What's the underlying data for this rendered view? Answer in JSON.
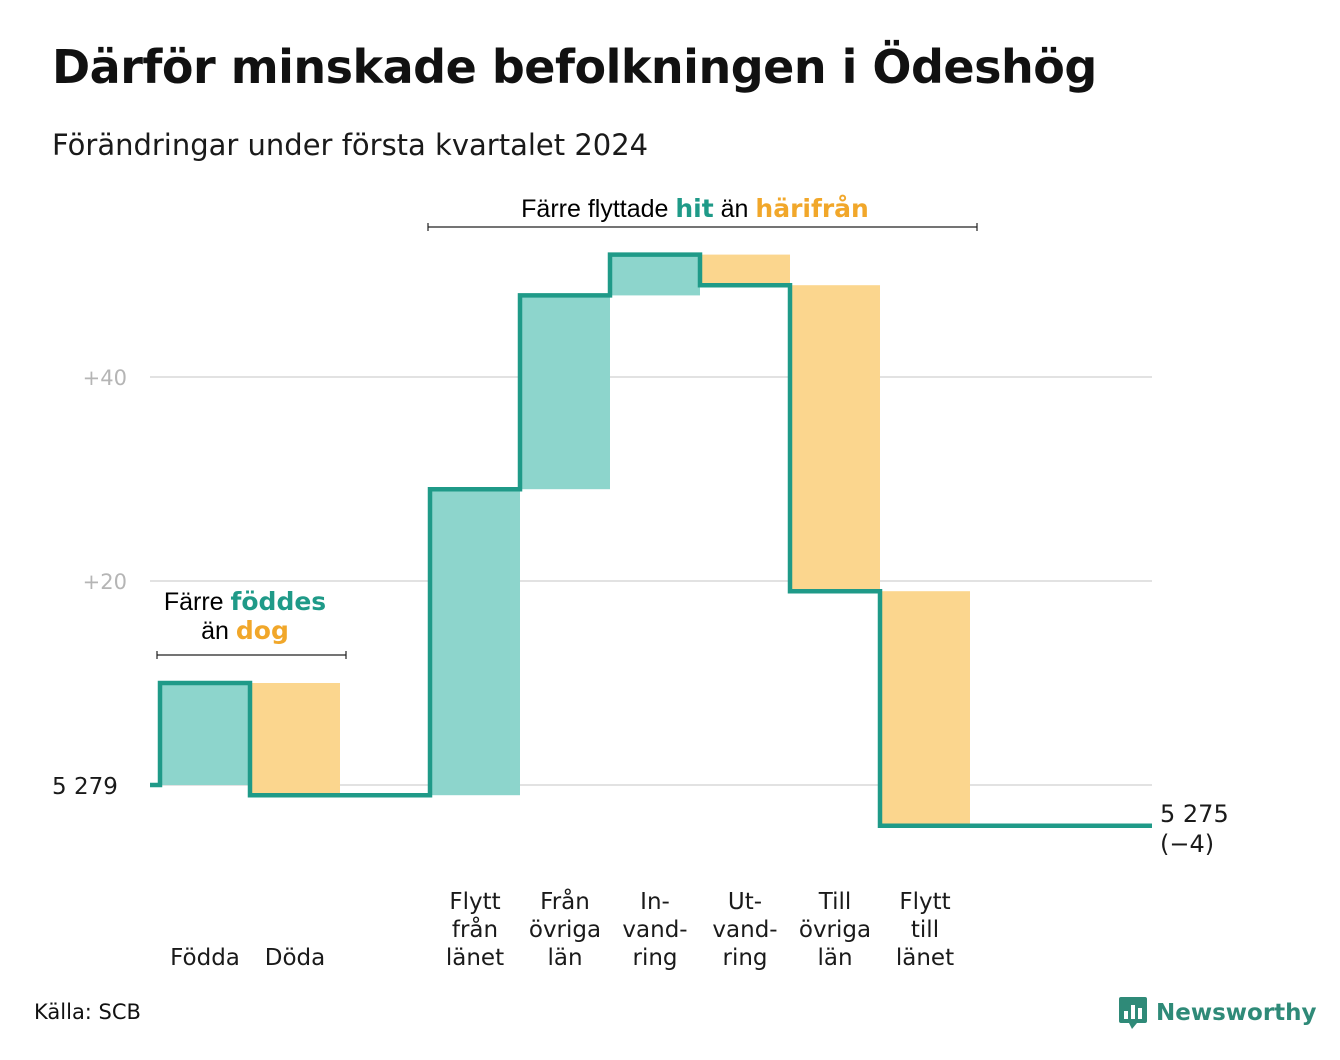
{
  "header": {
    "title": "Därför minskade befolkningen i Ödeshög",
    "subtitle": "Förändringar under första kvartalet 2024"
  },
  "footer": {
    "source": "Källa: SCB",
    "brand": "Newsworthy",
    "brand_icon": "bar-chart-speech-bubble-icon"
  },
  "colors": {
    "increase": "#8dd5cc",
    "decrease": "#fbd68e",
    "line": "#1f9a88",
    "grid": "#e2e2e2",
    "accent_teal": "#1f9a88",
    "accent_orange": "#f1a72a"
  },
  "chart_data": {
    "type": "bar",
    "subtype": "waterfall",
    "title": "Därför minskade befolkningen i Ödeshög",
    "subtitle": "Förändringar under första kvartalet 2024",
    "start_value": 5279,
    "start_label": "5  279",
    "end_value": 5275,
    "end_label": "5 275",
    "end_change_label": "(−4)",
    "y_ticks": [
      {
        "value": 20,
        "label": "+20"
      },
      {
        "value": 40,
        "label": "+40"
      }
    ],
    "ylim": [
      -6,
      54
    ],
    "grid": true,
    "steps": [
      {
        "name": "births",
        "label_lines": [
          "Födda"
        ],
        "value": 10,
        "kind": "increase"
      },
      {
        "name": "deaths",
        "label_lines": [
          "Döda"
        ],
        "value": -11,
        "kind": "decrease"
      },
      {
        "name": "gap",
        "label_lines": [],
        "value": 0,
        "kind": "gap"
      },
      {
        "name": "moved-within-county",
        "label_lines": [
          "Flytt",
          "från",
          "länet"
        ],
        "value": 30,
        "kind": "increase"
      },
      {
        "name": "from-other-counties",
        "label_lines": [
          "Från",
          "övriga",
          "län"
        ],
        "value": 19,
        "kind": "increase"
      },
      {
        "name": "immigration",
        "label_lines": [
          "In-",
          "vand-",
          "ring"
        ],
        "value": 4,
        "kind": "increase"
      },
      {
        "name": "emigration",
        "label_lines": [
          "Ut-",
          "vand-",
          "ring"
        ],
        "value": -3,
        "kind": "decrease"
      },
      {
        "name": "to-other-counties",
        "label_lines": [
          "Till",
          "övriga",
          "län"
        ],
        "value": -30,
        "kind": "decrease"
      },
      {
        "name": "moved-to-county",
        "label_lines": [
          "Flytt",
          "till",
          "länet"
        ],
        "value": -23,
        "kind": "decrease"
      }
    ],
    "annotations": [
      {
        "name": "births-vs-deaths",
        "lines": [
          [
            {
              "text": "Färre ",
              "style": "plain"
            },
            {
              "text": "föddes",
              "style": "teal"
            }
          ],
          [
            {
              "text": "än ",
              "style": "plain"
            },
            {
              "text": "dog",
              "style": "orange"
            }
          ]
        ]
      },
      {
        "name": "moved-in-vs-out",
        "lines": [
          [
            {
              "text": "Färre flyttade ",
              "style": "plain"
            },
            {
              "text": "hit",
              "style": "teal"
            },
            {
              "text": " än ",
              "style": "plain"
            },
            {
              "text": "härifrån",
              "style": "orange"
            }
          ]
        ]
      }
    ]
  }
}
